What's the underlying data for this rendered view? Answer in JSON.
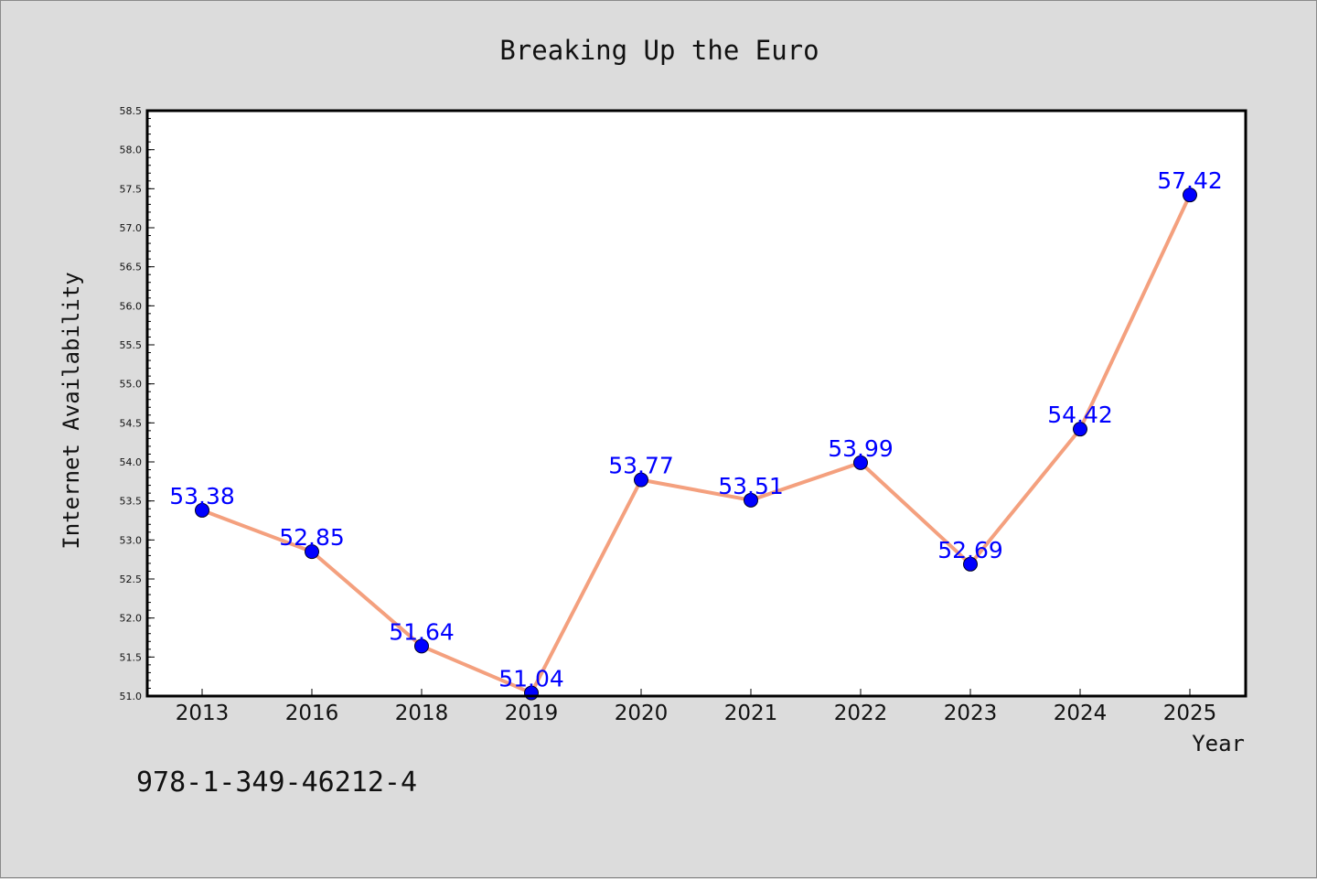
{
  "chart_data": {
    "type": "line",
    "title": "Breaking Up the Euro",
    "xlabel": "Year",
    "ylabel": "Internet Availability",
    "categories": [
      "2013",
      "2016",
      "2018",
      "2019",
      "2020",
      "2021",
      "2022",
      "2023",
      "2024",
      "2025"
    ],
    "values": [
      53.38,
      52.85,
      51.64,
      51.04,
      53.77,
      53.51,
      53.99,
      52.69,
      54.42,
      57.42
    ],
    "data_labels": [
      "53.38",
      "52.85",
      "51.64",
      "51.04",
      "53.77",
      "53.51",
      "53.99",
      "52.69",
      "54.42",
      "57.42"
    ],
    "ylim": [
      51.0,
      58.5
    ],
    "yticks": [
      "51.0",
      "51.5",
      "52.0",
      "52.5",
      "53.0",
      "53.5",
      "54.0",
      "54.5",
      "55.0",
      "55.5",
      "56.0",
      "56.5",
      "57.0",
      "57.5",
      "58.0",
      "58.5"
    ],
    "grid": false,
    "line_color": "#f4a07e",
    "marker_color": "#0000ff",
    "label_color": "#0000ff"
  },
  "annotation": "978-1-349-46212-4"
}
